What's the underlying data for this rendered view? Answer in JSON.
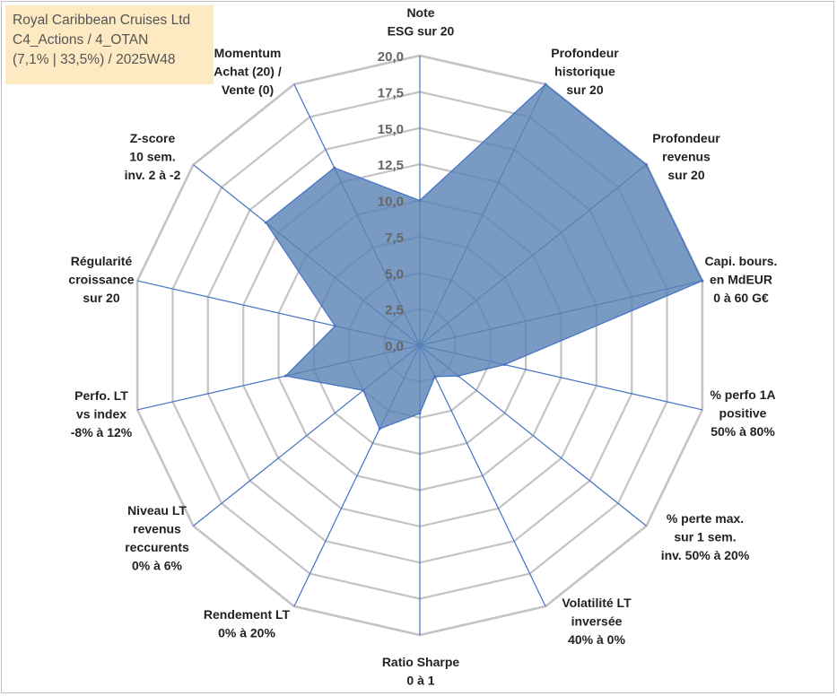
{
  "info": {
    "company": "Royal Caribbean Cruises Ltd",
    "category": "C4_Actions / 4_OTAN",
    "stats": "(7,1% | 33,5%) / 2025W48"
  },
  "chart_data": {
    "type": "radar",
    "title": "",
    "rmin": 0,
    "rmax": 20,
    "tick_step": 2.5,
    "tick_labels": [
      "0,0",
      "2,5",
      "5,0",
      "7,5",
      "10,0",
      "12,5",
      "15,0",
      "17,5",
      "20,0"
    ],
    "fill_color": "#5b84b6",
    "edge_color": "#4472c4",
    "grid_color": "#c4c4c4",
    "axes": [
      {
        "label": [
          "Note",
          "ESG sur 20"
        ],
        "value": 10.0
      },
      {
        "label": [
          "Profondeur",
          "historique",
          "sur 20"
        ],
        "value": 20.0
      },
      {
        "label": [
          "Profondeur",
          "revenus",
          "sur 20"
        ],
        "value": 20.0
      },
      {
        "label": [
          "Capi. bours.",
          "en MdEUR",
          "0 à 60 G€"
        ],
        "value": 20.0
      },
      {
        "label": [
          "% perfo 1A",
          "positive",
          "50% à 80%"
        ],
        "value": 6.0
      },
      {
        "label": [
          "% perte max.",
          "sur 1 sem.",
          "inv. 50% à 20%"
        ],
        "value": 3.4
      },
      {
        "label": [
          "Volatilité LT",
          "inversée",
          "40% à 0%"
        ],
        "value": 2.4
      },
      {
        "label": [
          "Ratio Sharpe",
          "0 à 1"
        ],
        "value": 4.7
      },
      {
        "label": [
          "Rendement LT",
          "0% à 20%"
        ],
        "value": 6.4
      },
      {
        "label": [
          "Niveau LT",
          "revenus",
          "reccurents",
          "0% à 6%"
        ],
        "value": 5.0
      },
      {
        "label": [
          "Perfo. LT",
          "vs index",
          "-8% à 12%"
        ],
        "value": 9.5
      },
      {
        "label": [
          "Régularité",
          "croissance",
          "sur 20"
        ],
        "value": 6.0
      },
      {
        "label": [
          "Z-score",
          "10 sem.",
          "inv. 2 à -2"
        ],
        "value": 13.6
      },
      {
        "label": [
          "Momentum",
          "Achat (20) /",
          "Vente (0)"
        ],
        "value": 13.6
      }
    ]
  }
}
